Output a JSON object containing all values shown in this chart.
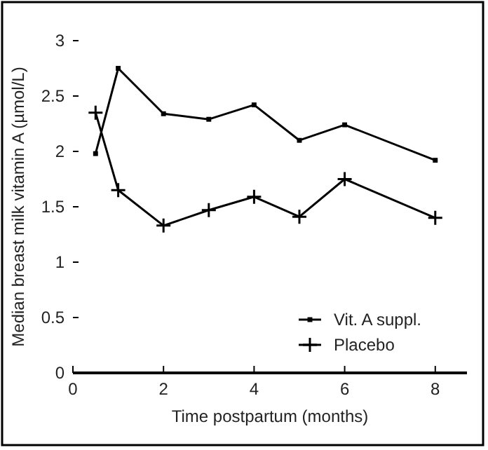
{
  "chart_data": {
    "type": "line",
    "xlabel": "Time postpartum (months)",
    "ylabel": "Median breast milk vitamin A (µmol/L)",
    "xlim": [
      0,
      8.7
    ],
    "xticks": [
      0,
      2,
      4,
      6,
      8
    ],
    "ylim": [
      0,
      3
    ],
    "yticks": [
      0,
      0.5,
      1,
      1.5,
      2,
      2.5,
      3
    ],
    "legend": "bottom right",
    "grid": false,
    "x": [
      0.5,
      1,
      2,
      3,
      4,
      5,
      6,
      8
    ],
    "series": [
      {
        "name": "Vit. A suppl.",
        "color": "#000000",
        "marker": "square",
        "values": [
          1.98,
          2.75,
          2.34,
          2.29,
          2.42,
          2.1,
          2.24,
          1.92
        ]
      },
      {
        "name": "Placebo",
        "color": "#000000",
        "marker": "cross",
        "values": [
          2.35,
          1.65,
          1.33,
          1.47,
          1.59,
          1.41,
          1.75,
          1.4
        ]
      }
    ]
  }
}
